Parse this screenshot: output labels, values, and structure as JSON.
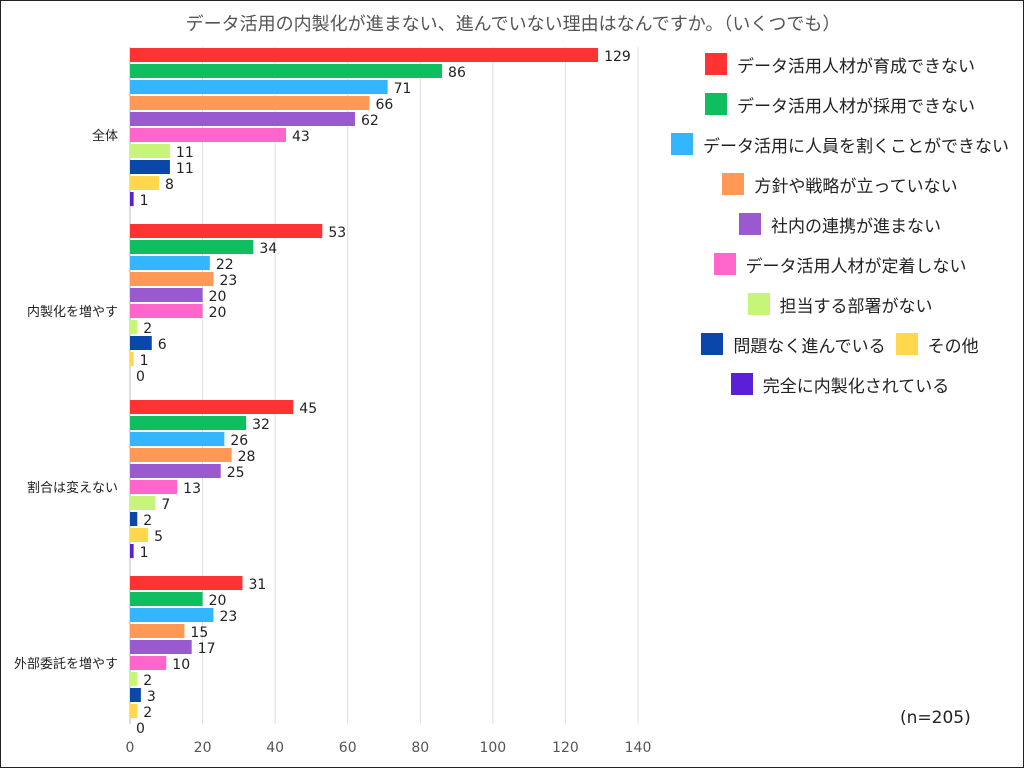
{
  "title": "データ活用の内製化が進まない、進んでいない理由はなんですか。（いくつでも）",
  "note": "(n=205)",
  "chart_data": {
    "type": "bar",
    "orientation": "horizontal",
    "categories": [
      "全体",
      "内製化を増やす",
      "割合は変えない",
      "外部委託を増やす"
    ],
    "xlim": [
      0,
      140
    ],
    "xticks": [
      0,
      20,
      40,
      60,
      80,
      100,
      120,
      140
    ],
    "grid": true,
    "legend_position": "right",
    "series": [
      {
        "name": "データ活用人材が育成できない",
        "color": "#ff3333",
        "values": [
          129,
          53,
          45,
          31
        ]
      },
      {
        "name": "データ活用人材が採用できない",
        "color": "#0fbf5f",
        "values": [
          86,
          34,
          32,
          20
        ]
      },
      {
        "name": "データ活用に人員を割くことができない",
        "color": "#33b5ff",
        "values": [
          71,
          22,
          26,
          23
        ]
      },
      {
        "name": "方針や戦略が立っていない",
        "color": "#ff9955",
        "values": [
          66,
          23,
          28,
          15
        ]
      },
      {
        "name": "社内の連携が進まない",
        "color": "#9b59d0",
        "values": [
          62,
          20,
          25,
          17
        ]
      },
      {
        "name": "データ活用人材が定着しない",
        "color": "#ff66cc",
        "values": [
          43,
          20,
          13,
          10
        ]
      },
      {
        "name": "担当する部署がない",
        "color": "#c6f57a",
        "values": [
          11,
          2,
          7,
          2
        ]
      },
      {
        "name": "問題なく進んでいる",
        "color": "#0a47a8",
        "values": [
          11,
          6,
          2,
          3
        ]
      },
      {
        "name": "その他",
        "color": "#ffd84d",
        "values": [
          8,
          1,
          5,
          2
        ]
      },
      {
        "name": "完全に内製化されている",
        "color": "#5a1fd6",
        "values": [
          1,
          0,
          1,
          0
        ]
      }
    ]
  },
  "legend_rows": [
    [
      0
    ],
    [
      1
    ],
    [
      2
    ],
    [
      3
    ],
    [
      4
    ],
    [
      5
    ],
    [
      6
    ],
    [
      7,
      8
    ],
    [
      9
    ]
  ]
}
